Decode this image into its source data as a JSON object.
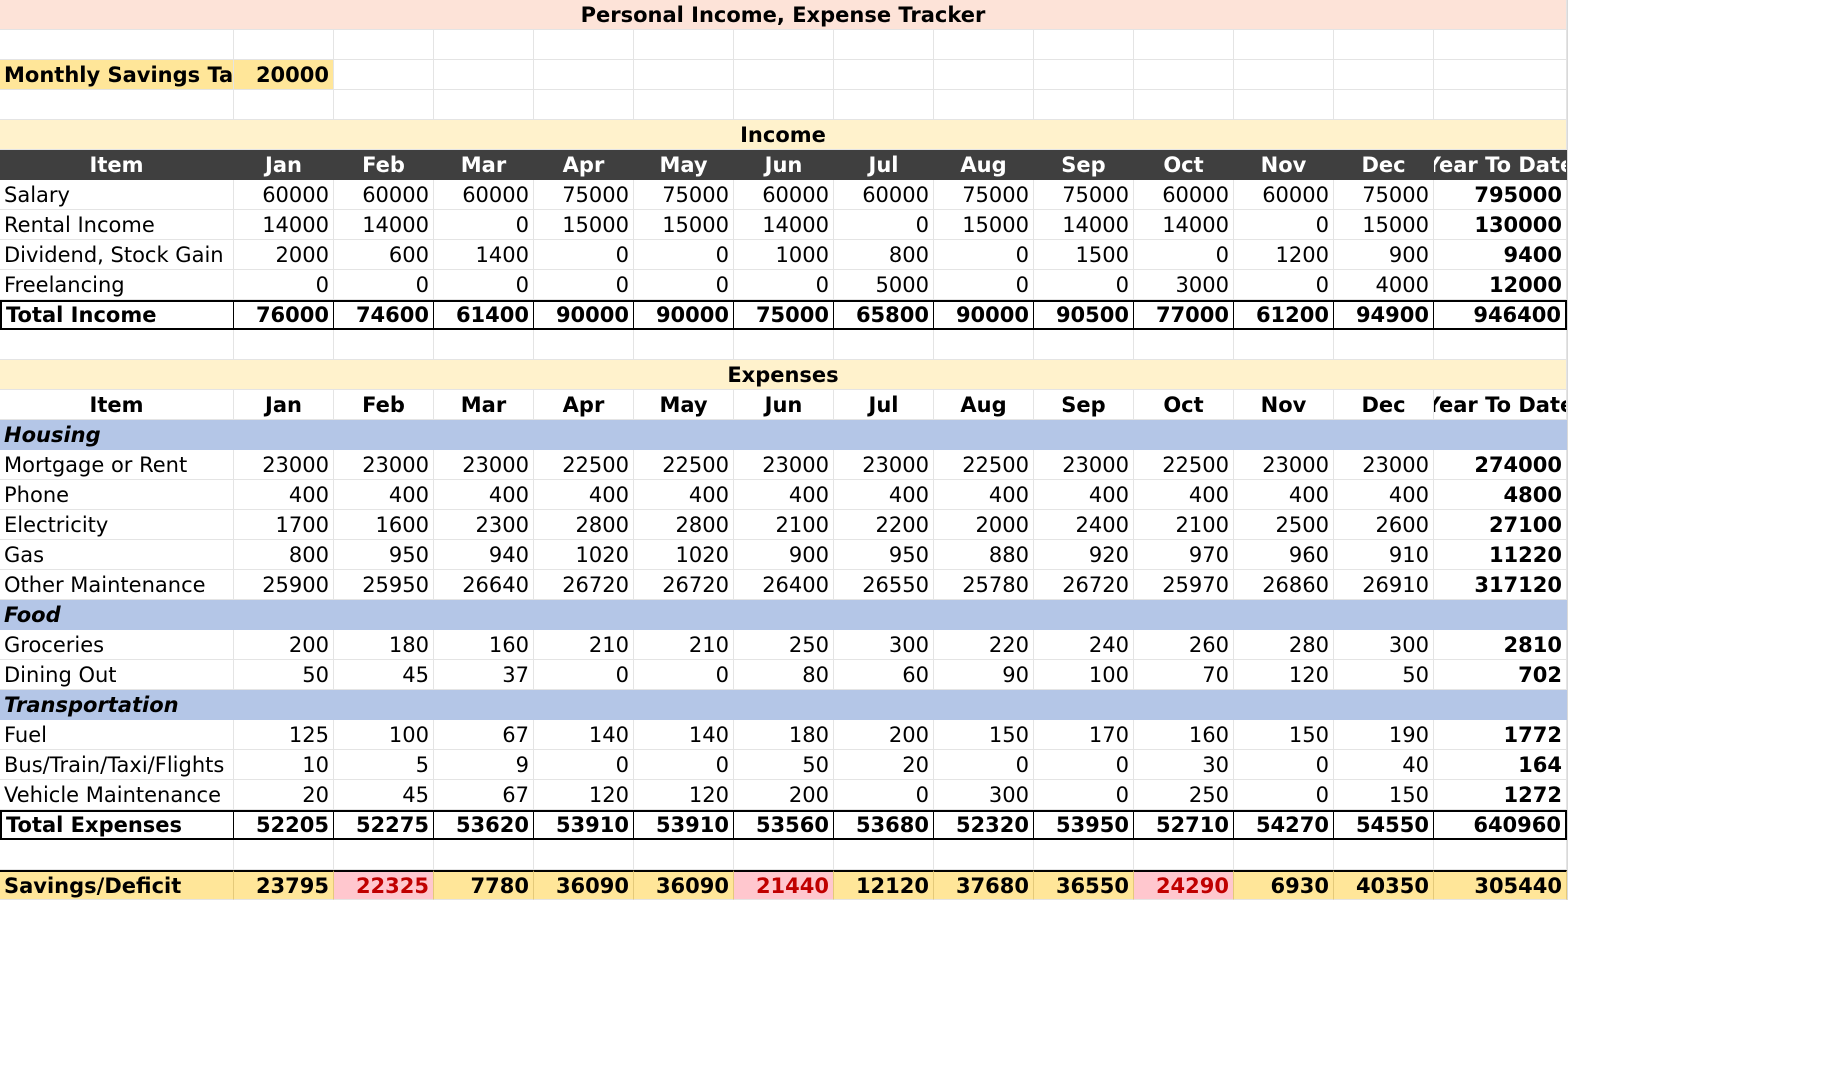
{
  "title": "Personal Income, Expense Tracker",
  "savings_target": {
    "label": "Monthly Savings Target",
    "value": "20000"
  },
  "income": {
    "section_title": "Income",
    "headers": [
      "Item",
      "Jan",
      "Feb",
      "Mar",
      "Apr",
      "May",
      "Jun",
      "Jul",
      "Aug",
      "Sep",
      "Oct",
      "Nov",
      "Dec",
      "Year To Date"
    ],
    "rows": [
      [
        "Salary",
        "60000",
        "60000",
        "60000",
        "75000",
        "75000",
        "60000",
        "60000",
        "75000",
        "75000",
        "60000",
        "60000",
        "75000",
        "795000"
      ],
      [
        "Rental Income",
        "14000",
        "14000",
        "0",
        "15000",
        "15000",
        "14000",
        "0",
        "15000",
        "14000",
        "14000",
        "0",
        "15000",
        "130000"
      ],
      [
        "Dividend, Stock Gain",
        "2000",
        "600",
        "1400",
        "0",
        "0",
        "1000",
        "800",
        "0",
        "1500",
        "0",
        "1200",
        "900",
        "9400"
      ],
      [
        "Freelancing",
        "0",
        "0",
        "0",
        "0",
        "0",
        "0",
        "5000",
        "0",
        "0",
        "3000",
        "0",
        "4000",
        "12000"
      ]
    ],
    "total": [
      "Total Income",
      "76000",
      "74600",
      "61400",
      "90000",
      "90000",
      "75000",
      "65800",
      "90000",
      "90500",
      "77000",
      "61200",
      "94900",
      "946400"
    ]
  },
  "expenses": {
    "section_title": "Expenses",
    "headers": [
      "Item",
      "Jan",
      "Feb",
      "Mar",
      "Apr",
      "May",
      "Jun",
      "Jul",
      "Aug",
      "Sep",
      "Oct",
      "Nov",
      "Dec",
      "Year To Date"
    ],
    "groups": [
      {
        "category": "Housing",
        "rows": [
          [
            "Mortgage or Rent",
            "23000",
            "23000",
            "23000",
            "22500",
            "22500",
            "23000",
            "23000",
            "22500",
            "23000",
            "22500",
            "23000",
            "23000",
            "274000"
          ],
          [
            "Phone",
            "400",
            "400",
            "400",
            "400",
            "400",
            "400",
            "400",
            "400",
            "400",
            "400",
            "400",
            "400",
            "4800"
          ],
          [
            "Electricity",
            "1700",
            "1600",
            "2300",
            "2800",
            "2800",
            "2100",
            "2200",
            "2000",
            "2400",
            "2100",
            "2500",
            "2600",
            "27100"
          ],
          [
            "Gas",
            "800",
            "950",
            "940",
            "1020",
            "1020",
            "900",
            "950",
            "880",
            "920",
            "970",
            "960",
            "910",
            "11220"
          ],
          [
            "Other Maintenance",
            "25900",
            "25950",
            "26640",
            "26720",
            "26720",
            "26400",
            "26550",
            "25780",
            "26720",
            "25970",
            "26860",
            "26910",
            "317120"
          ]
        ]
      },
      {
        "category": "Food",
        "rows": [
          [
            "Groceries",
            "200",
            "180",
            "160",
            "210",
            "210",
            "250",
            "300",
            "220",
            "240",
            "260",
            "280",
            "300",
            "2810"
          ],
          [
            "Dining Out",
            "50",
            "45",
            "37",
            "0",
            "0",
            "80",
            "60",
            "90",
            "100",
            "70",
            "120",
            "50",
            "702"
          ]
        ]
      },
      {
        "category": "Transportation",
        "rows": [
          [
            "Fuel",
            "125",
            "100",
            "67",
            "140",
            "140",
            "180",
            "200",
            "150",
            "170",
            "160",
            "150",
            "190",
            "1772"
          ],
          [
            "Bus/Train/Taxi/Flights",
            "10",
            "5",
            "9",
            "0",
            "0",
            "50",
            "20",
            "0",
            "0",
            "30",
            "0",
            "40",
            "164"
          ],
          [
            "Vehicle Maintenance",
            "20",
            "45",
            "67",
            "120",
            "120",
            "200",
            "0",
            "300",
            "0",
            "250",
            "0",
            "150",
            "1272"
          ]
        ]
      }
    ],
    "total": [
      "Total Expenses",
      "52205",
      "52275",
      "53620",
      "53910",
      "53910",
      "53560",
      "53680",
      "52320",
      "53950",
      "52710",
      "54270",
      "54550",
      "640960"
    ]
  },
  "savings": {
    "row": [
      "Savings/Deficit",
      "23795",
      "22325",
      "7780",
      "36090",
      "36090",
      "21440",
      "12120",
      "37680",
      "36550",
      "24290",
      "6930",
      "40350",
      "305440"
    ],
    "below_target_flags": [
      false,
      false,
      true,
      false,
      false,
      false,
      true,
      false,
      false,
      false,
      true,
      false,
      false
    ]
  },
  "colors": {
    "title_bg": "#fde3d8",
    "section_bg": "#fff2cc",
    "header_dark": "#3f3f3f",
    "category_bg": "#b4c6e7",
    "highlight_yellow": "#ffe699",
    "below_target_bg": "#ffc7ce",
    "below_target_text": "#c00000"
  }
}
